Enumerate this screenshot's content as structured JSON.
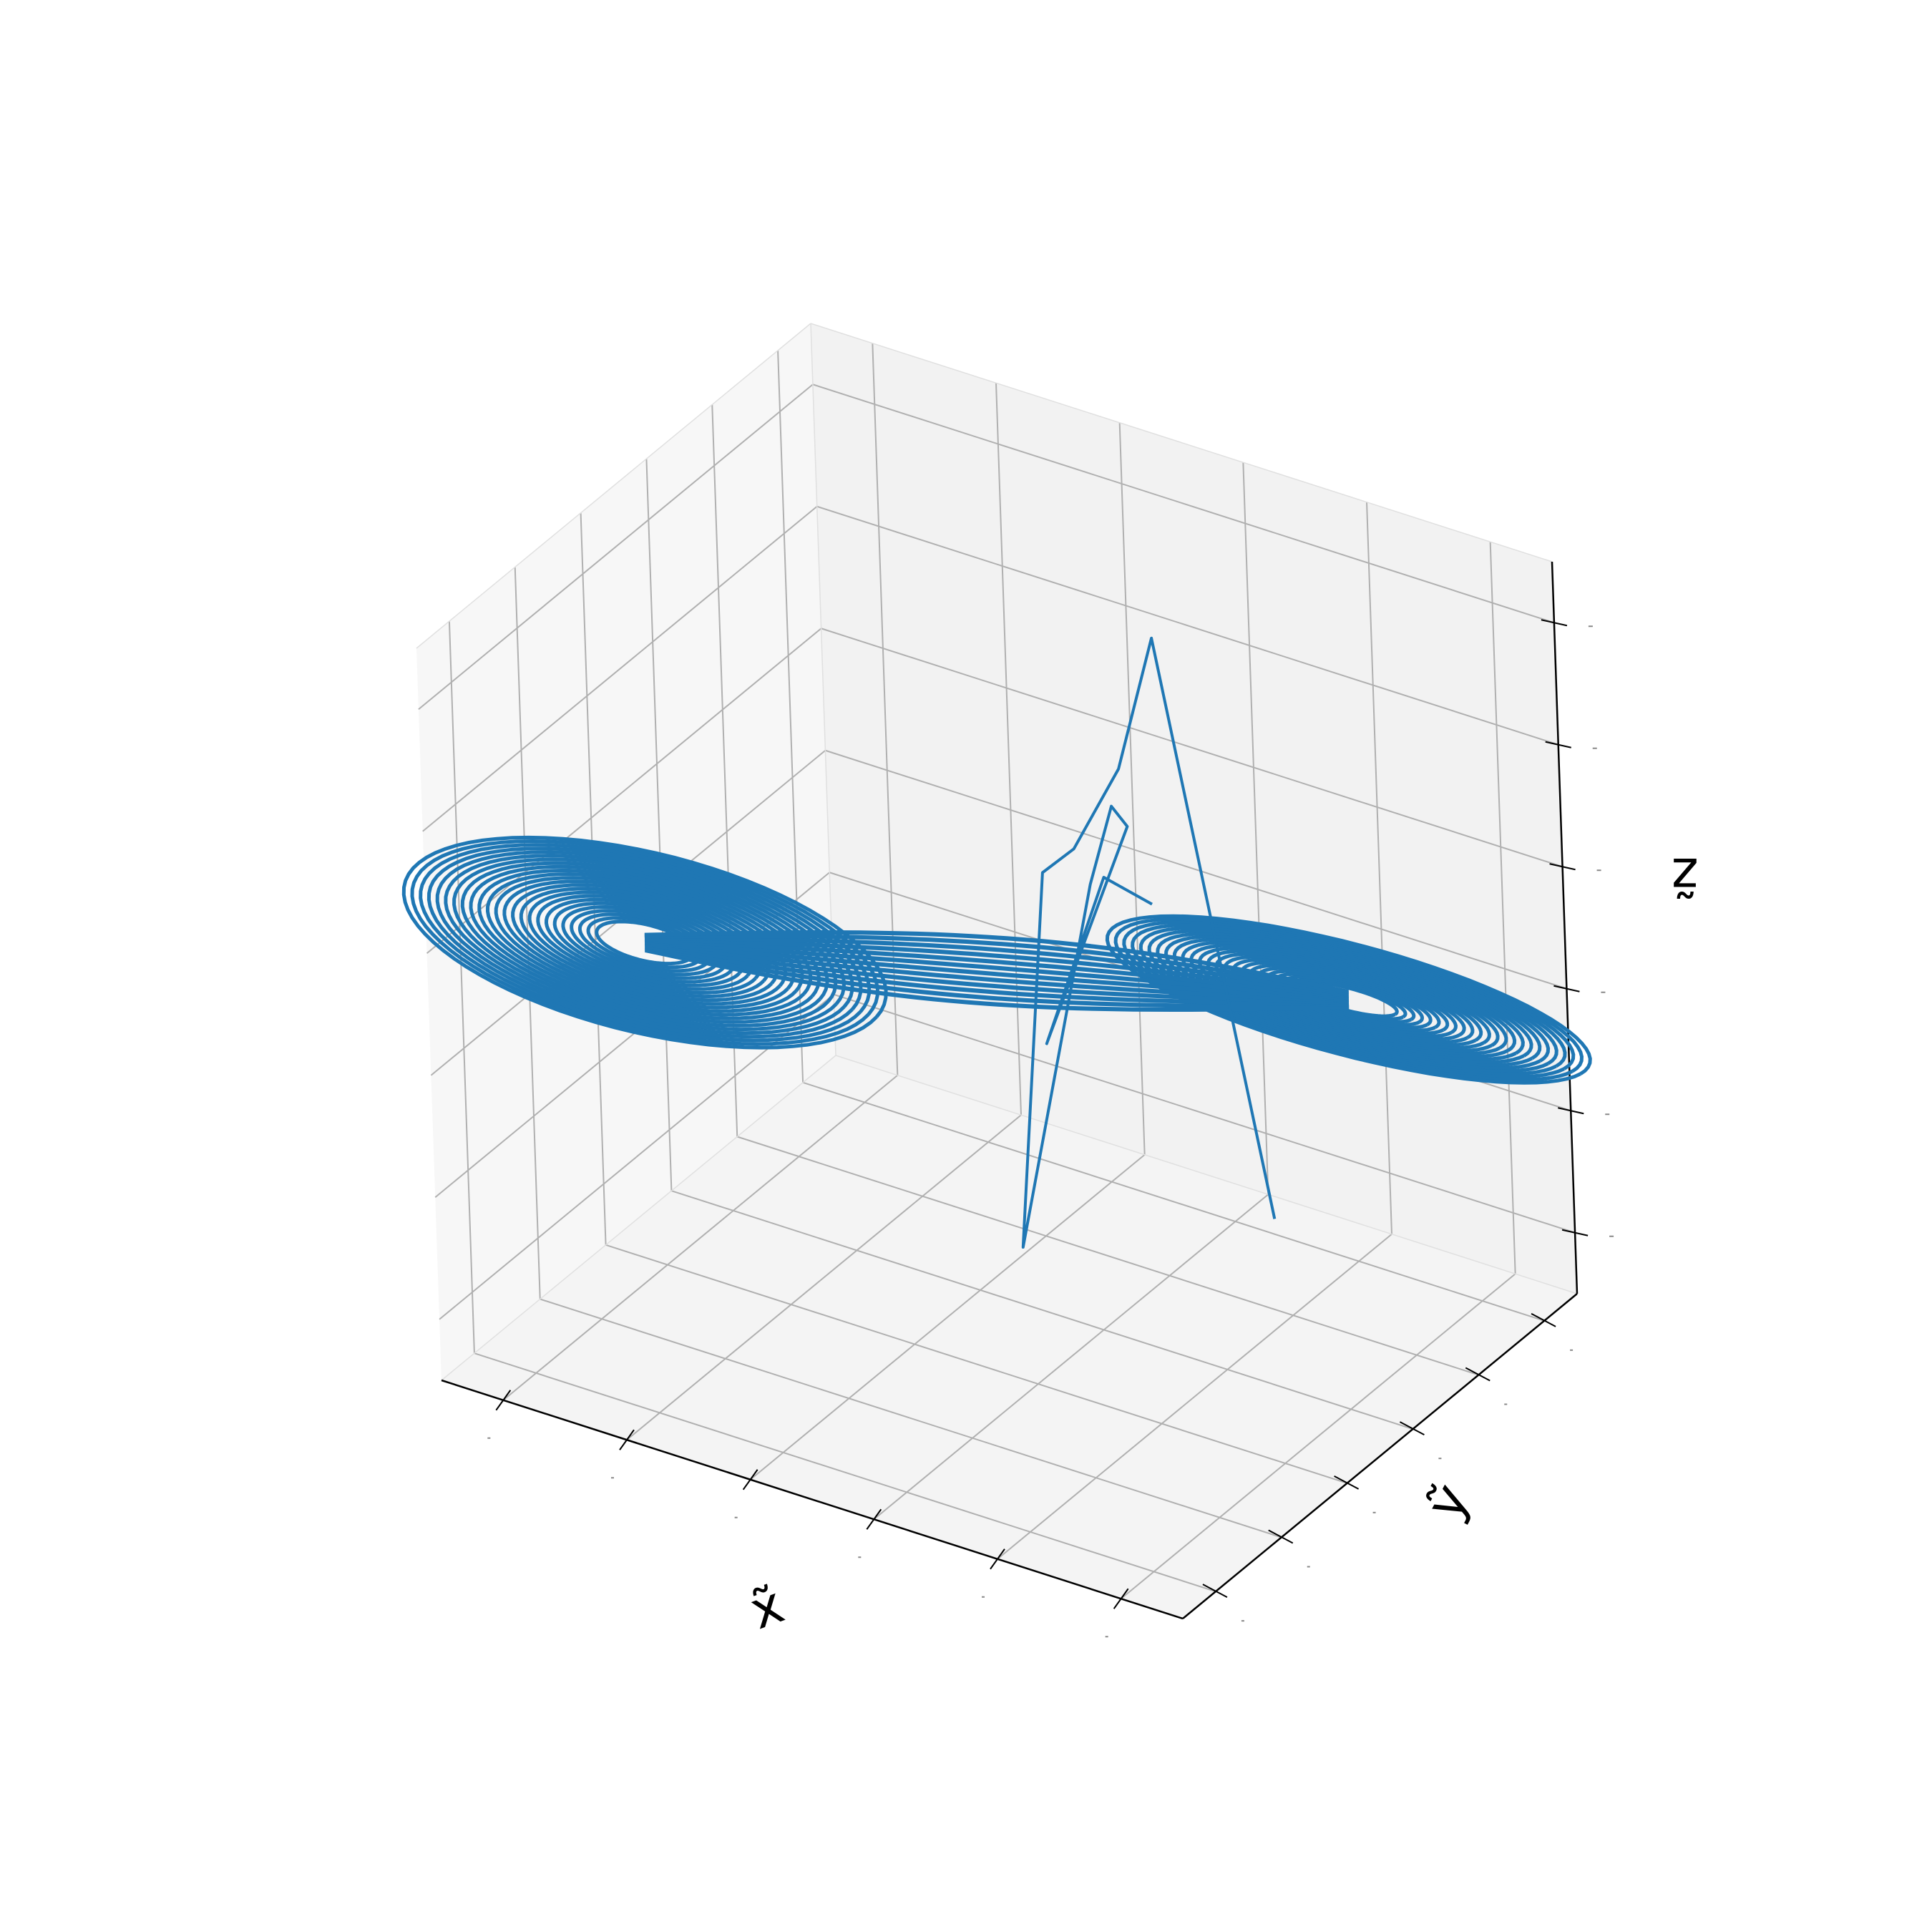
{
  "chart_data": {
    "type": "line3d",
    "title": "",
    "xlabel": "x̃",
    "ylabel": "ỹ",
    "zlabel": "z̃",
    "xlim": [
      -1.2,
      1.2
    ],
    "ylim": [
      -1.2,
      1.2
    ],
    "zlim": [
      -1.2,
      1.2
    ],
    "grid": true,
    "legend": "none",
    "series_color": "#1f77b4",
    "pane_colors": [
      "#f2f2f2",
      "#f7f7f7",
      "#f4f4f4"
    ],
    "grid_color": "#b0b0b0",
    "attractor": {
      "left_lobe_center": [
        -0.9,
        -0.45,
        0.0
      ],
      "right_lobe_center": [
        0.9,
        0.45,
        0.0
      ],
      "lobe_radius_range": [
        0.15,
        0.75
      ],
      "loops_per_lobe": 24
    },
    "transient_points": [
      [
        0.55,
        0.6,
        -0.9
      ],
      [
        0.35,
        0.35,
        1.05
      ],
      [
        0.2,
        0.4,
        0.55
      ],
      [
        0.1,
        0.3,
        0.3
      ],
      [
        0.05,
        0.2,
        0.25
      ],
      [
        0.0,
        0.1,
        -0.95
      ],
      [
        0.15,
        0.3,
        0.2
      ],
      [
        0.2,
        0.35,
        0.45
      ],
      [
        0.25,
        0.35,
        0.4
      ],
      [
        0.1,
        0.1,
        -0.25
      ],
      [
        0.25,
        0.2,
        0.3
      ],
      [
        0.35,
        0.3,
        0.2
      ]
    ]
  }
}
